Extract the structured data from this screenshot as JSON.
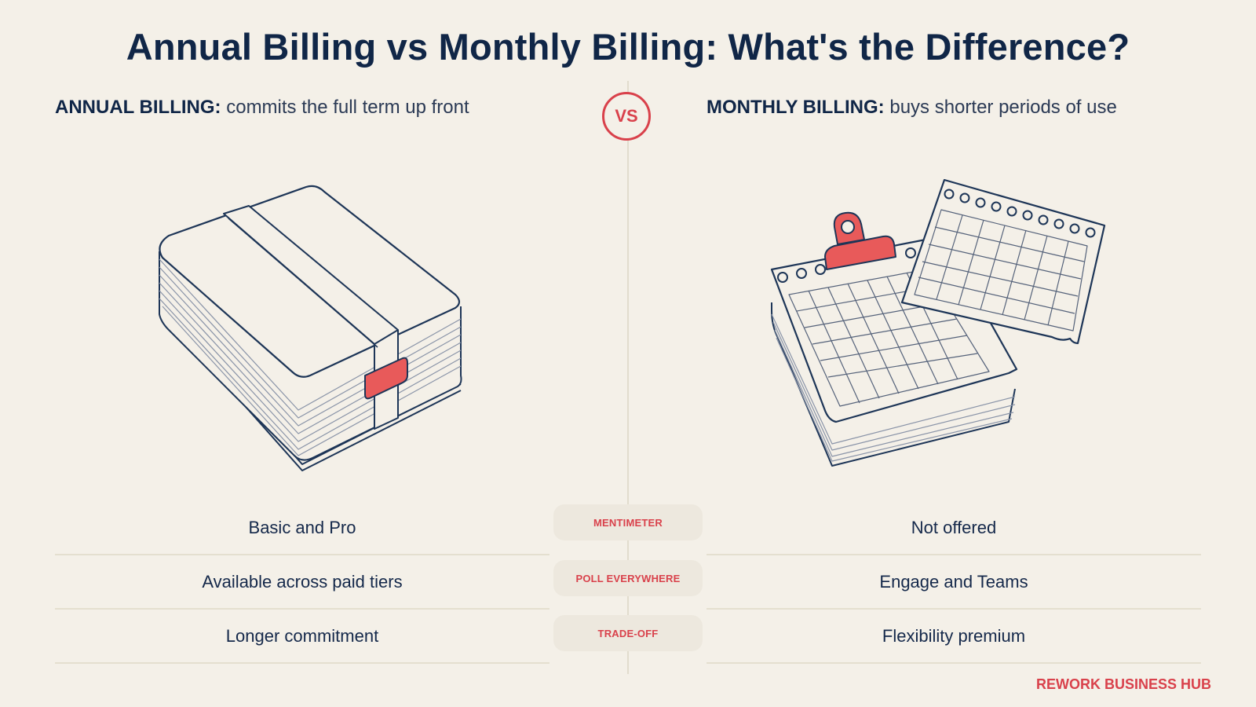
{
  "title": "Annual Billing vs Monthly Billing: What's the Difference?",
  "left": {
    "label": "ANNUAL BILLING:",
    "description": "commits the full term up front",
    "illustration_icon": "strapped-card-stack-icon",
    "rows": [
      "Basic and Pro",
      "Available across paid tiers",
      "Longer commitment"
    ]
  },
  "right": {
    "label": "MONTHLY BILLING:",
    "description": "buys shorter periods of use",
    "illustration_icon": "calendar-pages-icon",
    "rows": [
      "Not offered",
      "Engage and Teams",
      "Flexibility premium"
    ]
  },
  "vs_label": "VS",
  "categories": [
    "MENTIMETER",
    "POLL EVERYWHERE",
    "TRADE-OFF"
  ],
  "brand": "REWORK BUSINESS HUB",
  "colors": {
    "background": "#f4f0e8",
    "navy": "#102647",
    "accent_red": "#d9414b",
    "divider": "#e2dccd"
  }
}
